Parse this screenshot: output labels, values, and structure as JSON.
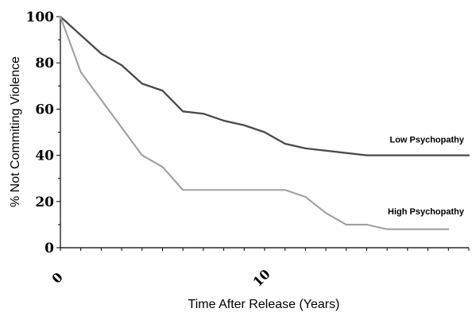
{
  "chart_data": {
    "type": "line",
    "title": "",
    "xlabel": "Time After Release (Years)",
    "ylabel": "% Not Commiting Violence",
    "xlim": [
      0,
      20
    ],
    "ylim": [
      0,
      100
    ],
    "x_tick_labels": [
      {
        "value": 0,
        "label": "0"
      },
      {
        "value": 10,
        "label": "10"
      }
    ],
    "y_tick_labels": [
      {
        "value": 0,
        "label": "0"
      },
      {
        "value": 20,
        "label": "20"
      },
      {
        "value": 40,
        "label": "40"
      },
      {
        "value": 60,
        "label": "60"
      },
      {
        "value": 80,
        "label": "80"
      },
      {
        "value": 100,
        "label": "100"
      }
    ],
    "grid": false,
    "legend": "none",
    "series": [
      {
        "name": "Low Psychopathy",
        "color": "#4a4a4a",
        "x": [
          0,
          1,
          2,
          3,
          4,
          5,
          6,
          7,
          8,
          9,
          10,
          11,
          12,
          13,
          14,
          15,
          16,
          17,
          18,
          19,
          20
        ],
        "y": [
          100,
          92,
          84,
          79,
          71,
          68,
          59,
          58,
          55,
          53,
          50,
          45,
          43,
          42,
          41,
          40,
          40,
          40,
          40,
          40,
          40
        ]
      },
      {
        "name": "High Psychopathy",
        "color": "#a0a0a0",
        "x": [
          0,
          1,
          2,
          3,
          4,
          5,
          6,
          7,
          8,
          9,
          10,
          11,
          12,
          13,
          14,
          15,
          16,
          17,
          18,
          19
        ],
        "y": [
          100,
          76,
          64,
          52,
          40,
          35,
          25,
          25,
          25,
          25,
          25,
          25,
          22,
          15,
          10,
          10,
          8,
          8,
          8,
          8
        ]
      }
    ]
  }
}
